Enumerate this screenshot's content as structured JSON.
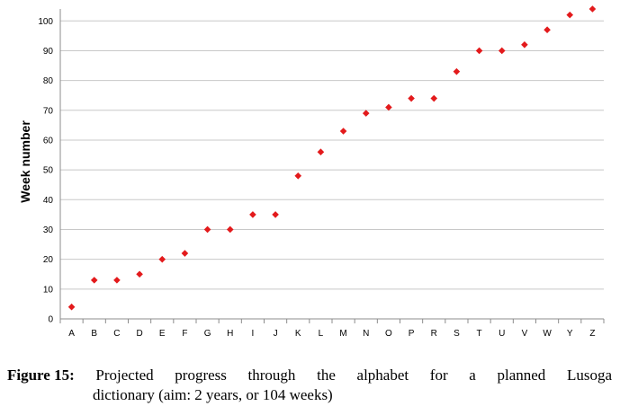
{
  "chart_data": {
    "type": "scatter",
    "categories": [
      "A",
      "B",
      "C",
      "D",
      "E",
      "F",
      "G",
      "H",
      "I",
      "J",
      "K",
      "L",
      "M",
      "N",
      "O",
      "P",
      "R",
      "S",
      "T",
      "U",
      "V",
      "W",
      "Y",
      "Z"
    ],
    "values": [
      4,
      13,
      13,
      15,
      20,
      22,
      30,
      30,
      35,
      35,
      48,
      56,
      63,
      69,
      71,
      74,
      74,
      83,
      90,
      90,
      92,
      97,
      102,
      104
    ],
    "ylabel": "Week number",
    "xlabel": "",
    "ylim": [
      0,
      104
    ],
    "yticks": [
      0,
      10,
      20,
      30,
      40,
      50,
      60,
      70,
      80,
      90,
      100
    ],
    "grid": true,
    "marker_color": "#e31a1c",
    "legend": "none"
  },
  "caption": {
    "label": "Figure 15:",
    "words": [
      "Projected",
      "progress",
      "through",
      "the",
      "alphabet",
      "for",
      "a",
      "planned",
      "Lusoga"
    ],
    "line2": "dictionary (aim: 2 years, or 104 weeks)"
  }
}
